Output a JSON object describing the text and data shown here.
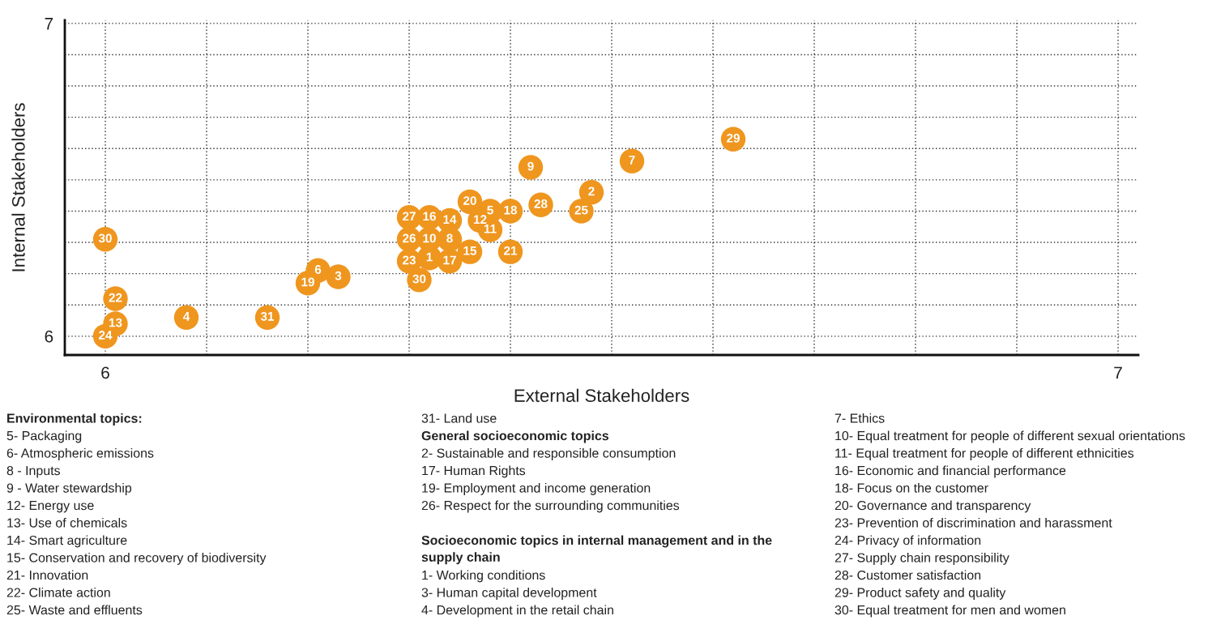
{
  "chart_data": {
    "type": "scatter",
    "xlabel": "External Stakeholders",
    "ylabel": "Internal Stakeholders",
    "xlim": [
      5.96,
      7.02
    ],
    "ylim": [
      5.94,
      7.01
    ],
    "xticks": [
      6,
      {
        "value": 6.1,
        "label": null
      },
      {
        "value": 6.2,
        "label": null
      },
      {
        "value": 6.3,
        "label": null
      },
      {
        "value": 6.4,
        "label": null
      },
      {
        "value": 6.5,
        "label": null
      },
      {
        "value": 6.6,
        "label": null
      },
      {
        "value": 6.7,
        "label": null
      },
      {
        "value": 6.8,
        "label": null
      },
      {
        "value": 6.9,
        "label": null
      },
      7
    ],
    "yticks": [
      6,
      {
        "value": 6.1,
        "label": null
      },
      {
        "value": 6.2,
        "label": null
      },
      {
        "value": 6.3,
        "label": null
      },
      {
        "value": 6.4,
        "label": null
      },
      {
        "value": 6.5,
        "label": null
      },
      {
        "value": 6.6,
        "label": null
      },
      {
        "value": 6.7,
        "label": null
      },
      {
        "value": 6.8,
        "label": null
      },
      {
        "value": 6.9,
        "label": null
      },
      7
    ],
    "grid": true,
    "marker": "circle",
    "series": [
      {
        "name": "29",
        "color": "#ef961f",
        "x": [
          6.62
        ],
        "values": [
          6.63
        ]
      },
      {
        "name": "7",
        "color": "#ef961f",
        "x": [
          6.52
        ],
        "values": [
          6.56
        ]
      },
      {
        "name": "9",
        "color": "#ef961f",
        "x": [
          6.42
        ],
        "values": [
          6.54
        ]
      },
      {
        "name": "2",
        "color": "#ef961f",
        "x": [
          6.48
        ],
        "values": [
          6.46
        ]
      },
      {
        "name": "25",
        "color": "#ef961f",
        "x": [
          6.47
        ],
        "values": [
          6.4
        ]
      },
      {
        "name": "28",
        "color": "#ef961f",
        "x": [
          6.43
        ],
        "values": [
          6.42
        ]
      },
      {
        "name": "18",
        "color": "#ef961f",
        "x": [
          6.4
        ],
        "values": [
          6.4
        ]
      },
      {
        "name": "5",
        "color": "#ef961f",
        "x": [
          6.38
        ],
        "values": [
          6.4
        ]
      },
      {
        "name": "20",
        "color": "#ef961f",
        "x": [
          6.36
        ],
        "values": [
          6.43
        ]
      },
      {
        "name": "12",
        "color": "#ef961f",
        "x": [
          6.37
        ],
        "values": [
          6.37
        ]
      },
      {
        "name": "11",
        "color": "#ef961f",
        "x": [
          6.38
        ],
        "values": [
          6.34
        ]
      },
      {
        "name": "14",
        "color": "#ef961f",
        "x": [
          6.34
        ],
        "values": [
          6.37
        ]
      },
      {
        "name": "16",
        "color": "#ef961f",
        "x": [
          6.32
        ],
        "values": [
          6.38
        ]
      },
      {
        "name": "27",
        "color": "#ef961f",
        "x": [
          6.3
        ],
        "values": [
          6.38
        ]
      },
      {
        "name": "26",
        "color": "#ef961f",
        "x": [
          6.3
        ],
        "values": [
          6.31
        ]
      },
      {
        "name": "10",
        "color": "#ef961f",
        "x": [
          6.32
        ],
        "values": [
          6.31
        ]
      },
      {
        "name": "8",
        "color": "#ef961f",
        "x": [
          6.34
        ],
        "values": [
          6.31
        ]
      },
      {
        "name": "21",
        "color": "#ef961f",
        "x": [
          6.4
        ],
        "values": [
          6.27
        ]
      },
      {
        "name": "15",
        "color": "#ef961f",
        "x": [
          6.36
        ],
        "values": [
          6.27
        ]
      },
      {
        "name": "17",
        "color": "#ef961f",
        "x": [
          6.34
        ],
        "values": [
          6.24
        ]
      },
      {
        "name": "1",
        "color": "#ef961f",
        "x": [
          6.32
        ],
        "values": [
          6.25
        ]
      },
      {
        "name": "23",
        "color": "#ef961f",
        "x": [
          6.3
        ],
        "values": [
          6.24
        ]
      },
      {
        "name": "30",
        "color": "#ef961f",
        "x": [
          6.31
        ],
        "values": [
          6.18
        ]
      },
      {
        "name": "6",
        "color": "#ef961f",
        "x": [
          6.21
        ],
        "values": [
          6.21
        ]
      },
      {
        "name": "3",
        "color": "#ef961f",
        "x": [
          6.23
        ],
        "values": [
          6.19
        ]
      },
      {
        "name": "19",
        "color": "#ef961f",
        "x": [
          6.2
        ],
        "values": [
          6.17
        ]
      },
      {
        "name": "31",
        "color": "#ef961f",
        "x": [
          6.16
        ],
        "values": [
          6.06
        ]
      },
      {
        "name": "4",
        "color": "#ef961f",
        "x": [
          6.08
        ],
        "values": [
          6.06
        ]
      },
      {
        "name": "30",
        "color": "#ef961f",
        "x": [
          6.0
        ],
        "values": [
          6.31
        ]
      },
      {
        "name": "22",
        "color": "#ef961f",
        "x": [
          6.01
        ],
        "values": [
          6.12
        ]
      },
      {
        "name": "13",
        "color": "#ef961f",
        "x": [
          6.01
        ],
        "values": [
          6.04
        ]
      },
      {
        "name": "24",
        "color": "#ef961f",
        "x": [
          6.0
        ],
        "values": [
          6.0
        ]
      }
    ],
    "annotations": [
      "Environmental topics:",
      "5- Packaging",
      "6- Atmospheric emissions",
      "8 - Inputs",
      "9 - Water stewardship",
      "12- Energy use",
      "13- Use of chemicals",
      "14- Smart agriculture",
      "15- Conservation and recovery of biodiversity",
      "21- Innovation",
      "22- Climate action",
      "25- Waste and effluents",
      "31- Land use",
      "General socioeconomic topics",
      "2- Sustainable and responsible consumption",
      "17- Human Rights",
      "19- Employment and income generation",
      "26- Respect for the surrounding communities",
      "Socioeconomic topics in internal management and in the\nsupply chain",
      "1- Working conditions",
      "3- Human capital development",
      "4- Development in the retail chain",
      "7- Ethics",
      "10- Equal treatment for people of different sexual orientations",
      "11- Equal treatment for people of different ethnicities",
      "16- Economic and financial performance",
      "18- Focus on the customer",
      "20- Governance and transparency",
      "23- Prevention of discrimination and harassment",
      "24- Privacy of information",
      "27- Supply chain responsibility",
      "28- Customer satisfaction",
      "29- Product safety and quality",
      "30- Equal treatment for men and women"
    ]
  }
}
